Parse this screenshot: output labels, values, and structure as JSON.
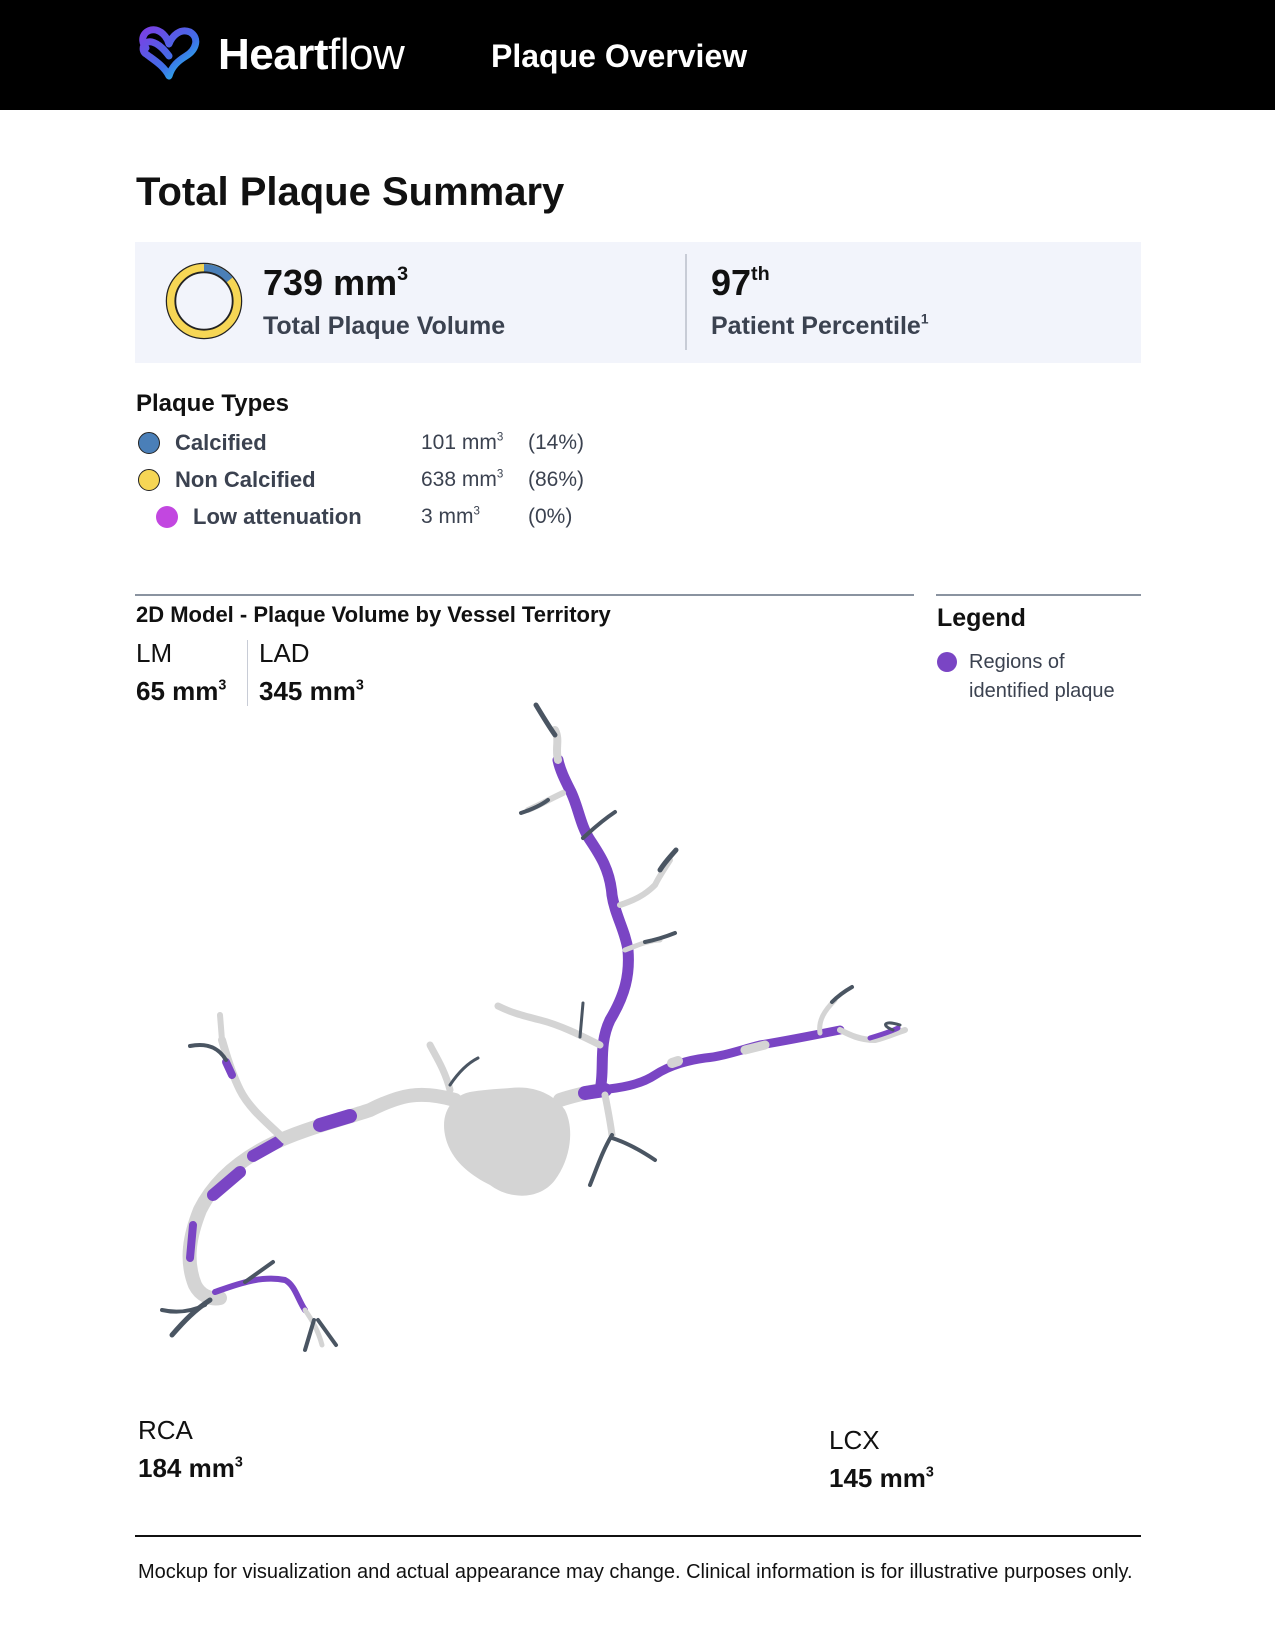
{
  "header": {
    "logo_text_bold": "Heart",
    "logo_text_light": "flow",
    "title": "Plaque Overview",
    "logo_icon": "heart-loop-icon",
    "logo_colors": [
      "#7b3fe4",
      "#1fa7e6"
    ]
  },
  "page_title": "Total Plaque Summary",
  "summary": {
    "total_value": "739 mm",
    "total_unit_sup": "3",
    "total_label": "Total Plaque Volume",
    "percentile_value": "97",
    "percentile_sup": "th",
    "percentile_label": "Patient Percentile",
    "percentile_label_sup": "1",
    "donut_calcified_fraction": 0.14
  },
  "plaque_types": {
    "title": "Plaque Types",
    "items": [
      {
        "name": "Calcified",
        "volume": "101 mm",
        "volume_sup": "3",
        "percent": "(14%)",
        "color": "#4a7fb8"
      },
      {
        "name": "Non Calcified",
        "volume": "638 mm",
        "volume_sup": "3",
        "percent": "(86%)",
        "color": "#f6d655"
      },
      {
        "name": "Low attenuation",
        "volume": "3 mm",
        "volume_sup": "3",
        "percent": "(0%)",
        "color": "#c247e0"
      }
    ]
  },
  "model": {
    "title": "2D Model - Plaque Volume by Vessel Territory",
    "territories": {
      "lm": {
        "name": "LM",
        "value": "65 mm",
        "sup": "3"
      },
      "lad": {
        "name": "LAD",
        "value": "345 mm",
        "sup": "3"
      },
      "rca": {
        "name": "RCA",
        "value": "184 mm",
        "sup": "3"
      },
      "lcx": {
        "name": "LCX",
        "value": "145 mm",
        "sup": "3"
      }
    },
    "colors": {
      "plaque": "#7a45c4",
      "vessel": "#d4d4d4",
      "tip": "#4a5562"
    }
  },
  "legend": {
    "title": "Legend",
    "item": "Regions of identified plaque",
    "color": "#7a45c4"
  },
  "footer": {
    "note": "Mockup for visualization and actual appearance may change. Clinical information is for illustrative purposes only."
  }
}
